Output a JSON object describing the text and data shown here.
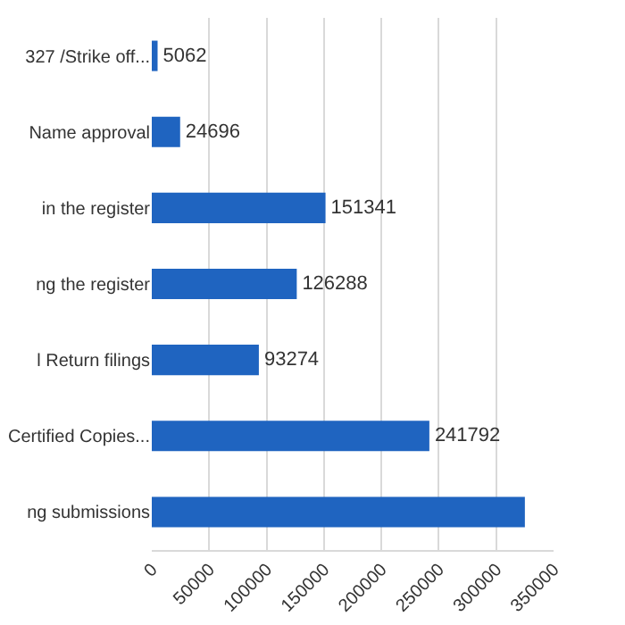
{
  "chart_data": {
    "type": "bar",
    "orientation": "horizontal",
    "categories": [
      "327 /Strike off...",
      "Name approval",
      "in the register",
      "ng the register",
      "l Return filings",
      "Certified Copies...",
      "ng submissions"
    ],
    "values": [
      5062,
      24696,
      151341,
      126288,
      93274,
      241792,
      325000
    ],
    "value_labels": [
      "5062",
      "24696",
      "151341",
      "126288",
      "93274",
      "241792",
      null
    ],
    "color": "#1f64c0",
    "xlim": [
      0,
      350000
    ],
    "xticks": [
      0,
      50000,
      100000,
      150000,
      200000,
      250000,
      300000,
      350000
    ],
    "grid": "x"
  }
}
